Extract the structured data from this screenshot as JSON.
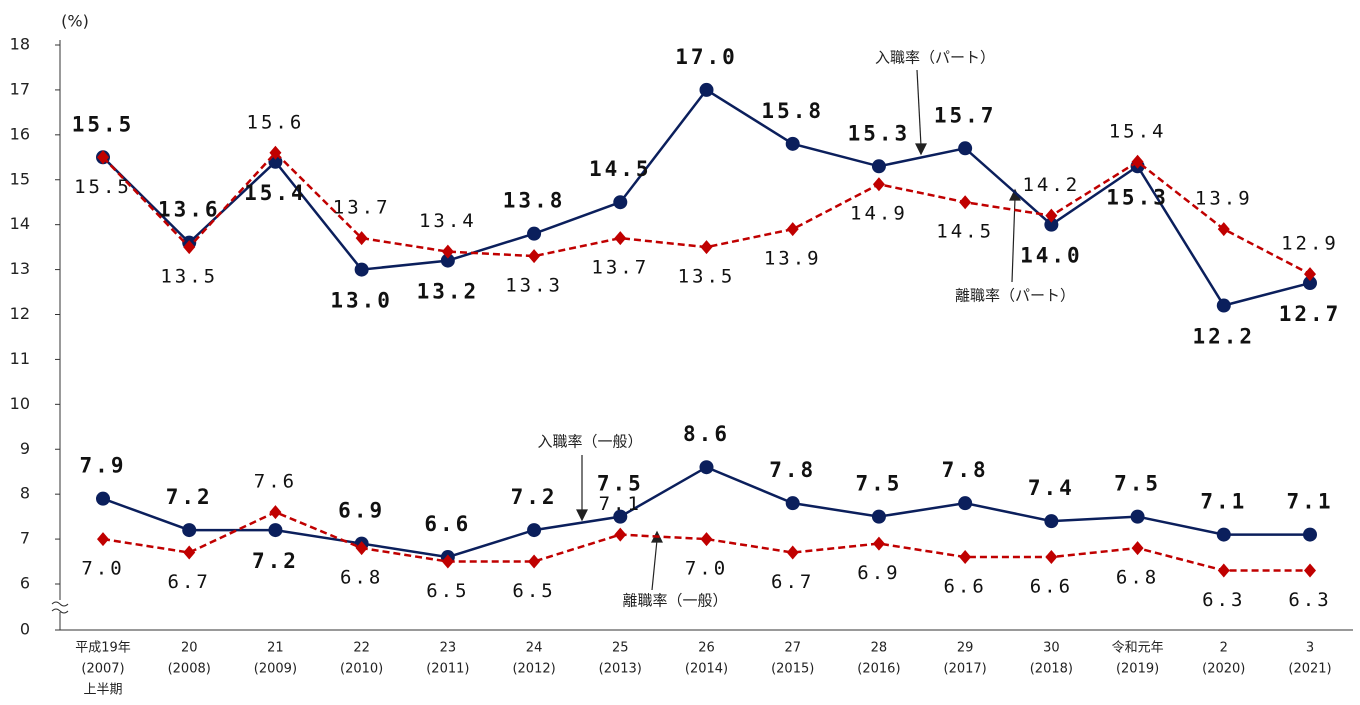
{
  "chart_data": {
    "type": "line",
    "y_label": "(%)",
    "categories": [
      [
        "平成19年",
        "(2007)",
        "上半期"
      ],
      [
        "20",
        "(2008)"
      ],
      [
        "21",
        "(2009)"
      ],
      [
        "22",
        "(2010)"
      ],
      [
        "23",
        "(2011)"
      ],
      [
        "24",
        "(2012)"
      ],
      [
        "25",
        "(2013)"
      ],
      [
        "26",
        "(2014)"
      ],
      [
        "27",
        "(2015)"
      ],
      [
        "28",
        "(2016)"
      ],
      [
        "29",
        "(2017)"
      ],
      [
        "30",
        "(2018)"
      ],
      [
        "令和元年",
        "(2019)"
      ],
      [
        "2",
        "(2020)"
      ],
      [
        "3",
        "(2021)"
      ]
    ],
    "ylim": [
      0,
      18
    ],
    "axis_break": [
      0,
      6
    ],
    "yticks": [
      0,
      6,
      7,
      8,
      9,
      10,
      11,
      12,
      13,
      14,
      15,
      16,
      17,
      18
    ],
    "grid": false,
    "series": [
      {
        "name": "入職率（パート）",
        "color": "#0b1f5c",
        "dash": false,
        "marker": "circle",
        "values": [
          15.5,
          13.6,
          15.4,
          13.0,
          13.2,
          13.8,
          14.5,
          17.0,
          15.8,
          15.3,
          15.7,
          14.0,
          15.3,
          12.2,
          12.7
        ],
        "value_labels": [
          "15.5",
          "13.6",
          "15.4",
          "13.0",
          "13.2",
          "13.8",
          "14.5",
          "17.0",
          "15.8",
          "15.3",
          "15.7",
          "14.0",
          "15.3",
          "12.2",
          "12.7"
        ]
      },
      {
        "name": "離職率（パート）",
        "color": "#c00000",
        "dash": true,
        "marker": "diamond",
        "values": [
          15.5,
          13.5,
          15.6,
          13.7,
          13.4,
          13.3,
          13.7,
          13.5,
          13.9,
          14.9,
          14.5,
          14.2,
          15.4,
          13.9,
          12.9
        ],
        "value_labels": [
          "15.5",
          "13.5",
          "15.6",
          "13.7",
          "13.4",
          "13.3",
          "13.7",
          "13.5",
          "13.9",
          "14.9",
          "14.5",
          "14.2",
          "15.4",
          "13.9",
          "12.9"
        ]
      },
      {
        "name": "入職率（一般）",
        "color": "#0b1f5c",
        "dash": false,
        "marker": "circle",
        "values": [
          7.9,
          7.2,
          7.2,
          6.9,
          6.6,
          7.2,
          7.5,
          8.6,
          7.8,
          7.5,
          7.8,
          7.4,
          7.5,
          7.1,
          7.1
        ],
        "value_labels": [
          "7.9",
          "7.2",
          "7.2",
          "6.9",
          "6.6",
          "7.2",
          "7.5",
          "8.6",
          "7.8",
          "7.5",
          "7.8",
          "7.4",
          "7.5",
          "7.1",
          "7.1"
        ]
      },
      {
        "name": "離職率（一般）",
        "color": "#c00000",
        "dash": true,
        "marker": "diamond",
        "values": [
          7.0,
          6.7,
          7.6,
          6.8,
          6.5,
          6.5,
          7.1,
          7.0,
          6.7,
          6.9,
          6.6,
          6.6,
          6.8,
          6.3,
          6.3
        ],
        "value_labels": [
          "7.0",
          "6.7",
          "7.6",
          "6.8",
          "6.5",
          "6.5",
          "7.1",
          "7.0",
          "6.7",
          "6.9",
          "6.6",
          "6.6",
          "6.8",
          "6.3",
          "6.3"
        ]
      }
    ]
  }
}
